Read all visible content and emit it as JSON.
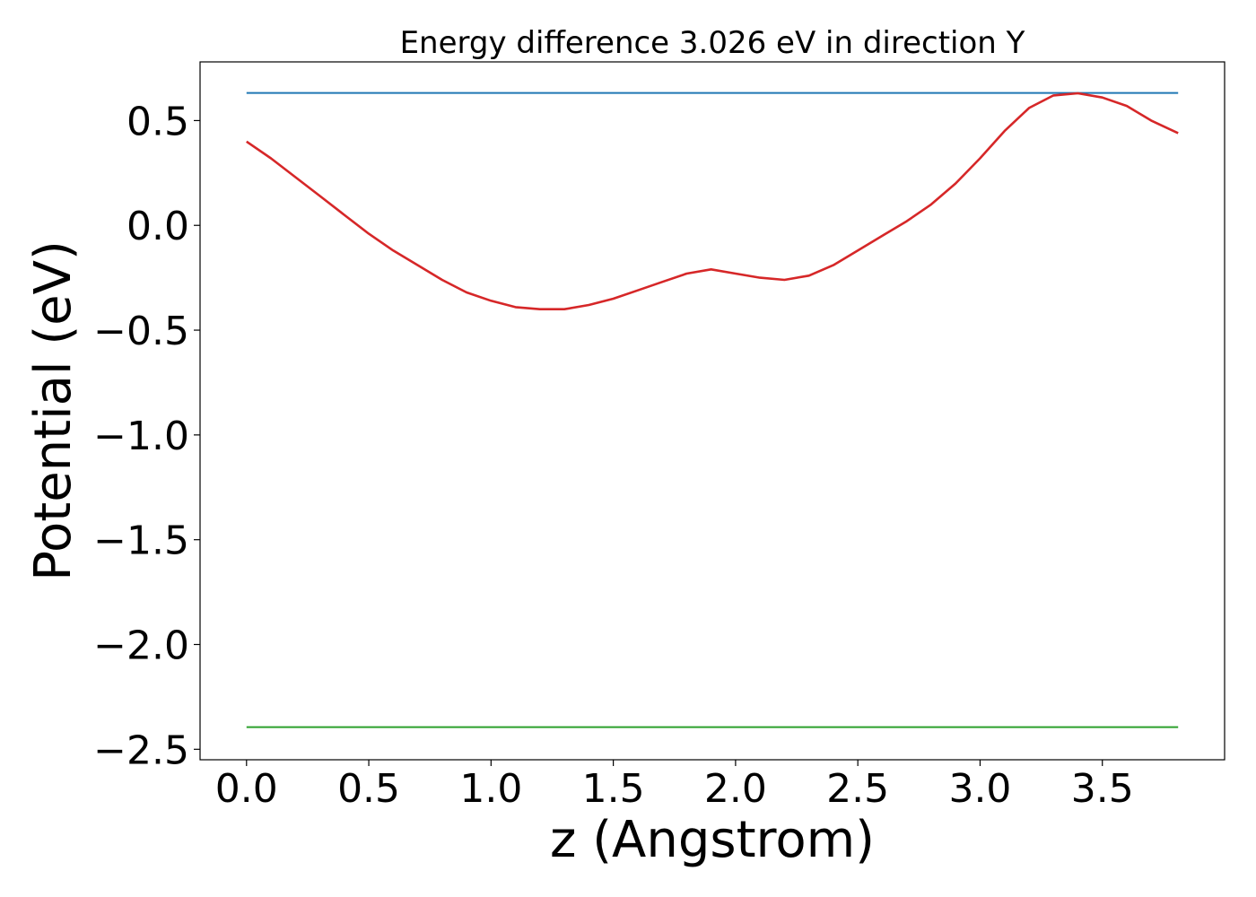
{
  "chart_data": {
    "type": "line",
    "title": "Energy difference 3.026 eV in direction Y",
    "xlabel": "z (Angstrom)",
    "ylabel": "Potential (eV)",
    "xlim": [
      -0.19,
      4.0
    ],
    "ylim": [
      -2.55,
      0.78
    ],
    "x_ticks": [
      0.0,
      0.5,
      1.0,
      1.5,
      2.0,
      2.5,
      3.0,
      3.5
    ],
    "x_tick_labels": [
      "0.0",
      "0.5",
      "1.0",
      "1.5",
      "2.0",
      "2.5",
      "3.0",
      "3.5"
    ],
    "y_ticks": [
      0.5,
      0.0,
      -0.5,
      -1.0,
      -1.5,
      -2.0,
      -2.5
    ],
    "y_tick_labels": [
      "0.5",
      "0.0",
      "−0.5",
      "−1.0",
      "−1.5",
      "−2.0",
      "−2.5"
    ],
    "grid": false,
    "series": [
      {
        "color": "#1f77b4",
        "x": [
          0.0,
          3.81
        ],
        "y": [
          0.632,
          0.632
        ]
      },
      {
        "color": "#2ca02c",
        "x": [
          0.0,
          3.81
        ],
        "y": [
          -2.394,
          -2.394
        ]
      },
      {
        "color": "#d62728",
        "x": [
          0.0,
          0.1,
          0.2,
          0.3,
          0.4,
          0.5,
          0.6,
          0.7,
          0.8,
          0.9,
          1.0,
          1.1,
          1.2,
          1.3,
          1.4,
          1.5,
          1.6,
          1.7,
          1.8,
          1.9,
          2.0,
          2.1,
          2.2,
          2.3,
          2.4,
          2.5,
          2.6,
          2.7,
          2.8,
          2.9,
          3.0,
          3.1,
          3.2,
          3.3,
          3.4,
          3.5,
          3.6,
          3.7,
          3.81
        ],
        "y": [
          0.4,
          0.32,
          0.23,
          0.14,
          0.05,
          -0.04,
          -0.12,
          -0.19,
          -0.26,
          -0.32,
          -0.36,
          -0.39,
          -0.4,
          -0.4,
          -0.38,
          -0.35,
          -0.31,
          -0.27,
          -0.23,
          -0.21,
          -0.23,
          -0.25,
          -0.26,
          -0.24,
          -0.19,
          -0.12,
          -0.05,
          0.02,
          0.1,
          0.2,
          0.32,
          0.45,
          0.56,
          0.62,
          0.63,
          0.61,
          0.57,
          0.5,
          0.44
        ]
      }
    ]
  }
}
